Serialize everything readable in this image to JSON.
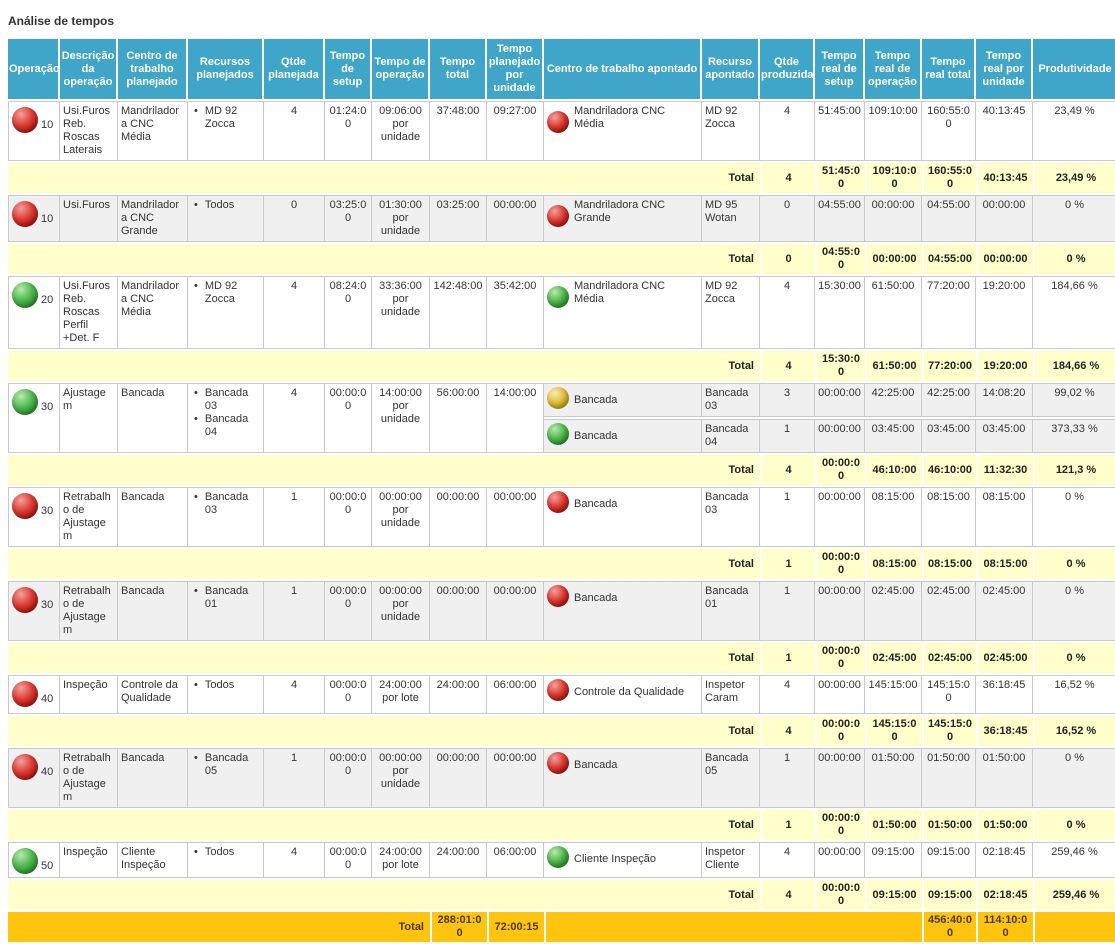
{
  "page_title": "Análise de tempos",
  "colors": {
    "header_bg": "#3FA5C9",
    "total_row_bg": "#FFFFCC",
    "grand_total_bg": "#FFC40D",
    "row_shade_bg": "#F0F0F0",
    "status_red": "#D8352E",
    "status_green": "#3FAE49",
    "status_yellow": "#DDBB33"
  },
  "table": {
    "columns": [
      "Operação",
      "Descrição da operação",
      "Centro de trabalho planejado",
      "Recursos planejados",
      "Qtde planejada",
      "Tempo de setup",
      "Tempo de operação",
      "Tempo total",
      "Tempo planejado por unidade",
      "Centro de trabalho apontado",
      "Recurso apontado",
      "Qtde produzida",
      "Tempo real de setup",
      "Tempo real de operação",
      "Tempo real total",
      "Tempo real por unidade",
      "Produtividade"
    ],
    "total_label": "Total",
    "groups": [
      {
        "op": "10",
        "status": "red",
        "shade": false,
        "descricao": "Usi.Furos Reb. Roscas Laterais",
        "centro_planejado": "Mandriladora CNC Média",
        "recursos": [
          "MD 92 Zocca"
        ],
        "qtde_planejada": "4",
        "tempo_setup": "01:24:00",
        "tempo_operacao": "09:06:00 por unidade",
        "tempo_total": "37:48:00",
        "tempo_planejado_unidade": "09:27:00",
        "apontados": [
          {
            "status": "red",
            "shade": false,
            "centro": "Mandriladora CNC Média",
            "recurso": "MD 92 Zocca",
            "qtde": "4",
            "real_setup": "51:45:00",
            "real_operacao": "109:10:00",
            "real_total": "160:55:00",
            "real_unidade": "40:13:45",
            "produtividade": "23,49 %"
          }
        ],
        "total": {
          "qtde": "4",
          "real_setup": "51:45:00",
          "real_operacao": "109:10:00",
          "real_total": "160:55:00",
          "real_unidade": "40:13:45",
          "produtividade": "23,49 %"
        }
      },
      {
        "op": "10",
        "status": "red",
        "shade": true,
        "descricao": "Usi.Furos",
        "centro_planejado": "Mandriladora CNC Grande",
        "recursos": [
          "Todos"
        ],
        "qtde_planejada": "0",
        "tempo_setup": "03:25:00",
        "tempo_operacao": "01:30:00 por unidade",
        "tempo_total": "03:25:00",
        "tempo_planejado_unidade": "00:00:00",
        "apontados": [
          {
            "status": "red",
            "shade": true,
            "centro": "Mandriladora CNC Grande",
            "recurso": "MD 95 Wotan",
            "qtde": "0",
            "real_setup": "04:55:00",
            "real_operacao": "00:00:00",
            "real_total": "04:55:00",
            "real_unidade": "00:00:00",
            "produtividade": "0 %"
          }
        ],
        "total": {
          "qtde": "0",
          "real_setup": "04:55:00",
          "real_operacao": "00:00:00",
          "real_total": "04:55:00",
          "real_unidade": "00:00:00",
          "produtividade": "0 %"
        }
      },
      {
        "op": "20",
        "status": "green",
        "shade": false,
        "descricao": "Usi.Furos Reb. Roscas Perfil +Det. F",
        "centro_planejado": "Mandriladora CNC Média",
        "recursos": [
          "MD 92 Zocca"
        ],
        "qtde_planejada": "4",
        "tempo_setup": "08:24:00",
        "tempo_operacao": "33:36:00 por unidade",
        "tempo_total": "142:48:00",
        "tempo_planejado_unidade": "35:42:00",
        "apontados": [
          {
            "status": "green",
            "shade": false,
            "centro": "Mandriladora CNC Média",
            "recurso": "MD 92 Zocca",
            "qtde": "4",
            "real_setup": "15:30:00",
            "real_operacao": "61:50:00",
            "real_total": "77:20:00",
            "real_unidade": "19:20:00",
            "produtividade": "184,66 %"
          }
        ],
        "total": {
          "qtde": "4",
          "real_setup": "15:30:00",
          "real_operacao": "61:50:00",
          "real_total": "77:20:00",
          "real_unidade": "19:20:00",
          "produtividade": "184,66 %"
        }
      },
      {
        "op": "30",
        "status": "green",
        "shade": false,
        "descricao": "Ajustagem",
        "centro_planejado": "Bancada",
        "recursos": [
          "Bancada 03",
          "Bancada 04"
        ],
        "qtde_planejada": "4",
        "tempo_setup": "00:00:00",
        "tempo_operacao": "14:00:00 por unidade",
        "tempo_total": "56:00:00",
        "tempo_planejado_unidade": "14:00:00",
        "apontados": [
          {
            "status": "yellow",
            "shade": true,
            "centro": "Bancada",
            "recurso": "Bancada 03",
            "qtde": "3",
            "real_setup": "00:00:00",
            "real_operacao": "42:25:00",
            "real_total": "42:25:00",
            "real_unidade": "14:08:20",
            "produtividade": "99,02 %"
          },
          {
            "status": "green",
            "shade": true,
            "centro": "Bancada",
            "recurso": "Bancada 04",
            "qtde": "1",
            "real_setup": "00:00:00",
            "real_operacao": "03:45:00",
            "real_total": "03:45:00",
            "real_unidade": "03:45:00",
            "produtividade": "373,33 %"
          }
        ],
        "total": {
          "qtde": "4",
          "real_setup": "00:00:00",
          "real_operacao": "46:10:00",
          "real_total": "46:10:00",
          "real_unidade": "11:32:30",
          "produtividade": "121,3 %"
        }
      },
      {
        "op": "30",
        "status": "red",
        "shade": false,
        "descricao": "Retrabalho de Ajustagem",
        "centro_planejado": "Bancada",
        "recursos": [
          "Bancada 03"
        ],
        "qtde_planejada": "1",
        "tempo_setup": "00:00:00",
        "tempo_operacao": "00:00:00 por unidade",
        "tempo_total": "00:00:00",
        "tempo_planejado_unidade": "00:00:00",
        "apontados": [
          {
            "status": "red",
            "shade": false,
            "centro": "Bancada",
            "recurso": "Bancada 03",
            "qtde": "1",
            "real_setup": "00:00:00",
            "real_operacao": "08:15:00",
            "real_total": "08:15:00",
            "real_unidade": "08:15:00",
            "produtividade": "0 %"
          }
        ],
        "total": {
          "qtde": "1",
          "real_setup": "00:00:00",
          "real_operacao": "08:15:00",
          "real_total": "08:15:00",
          "real_unidade": "08:15:00",
          "produtividade": "0 %"
        }
      },
      {
        "op": "30",
        "status": "red",
        "shade": true,
        "descricao": "Retrabalho de Ajustagem",
        "centro_planejado": "Bancada",
        "recursos": [
          "Bancada 01"
        ],
        "qtde_planejada": "1",
        "tempo_setup": "00:00:00",
        "tempo_operacao": "00:00:00 por unidade",
        "tempo_total": "00:00:00",
        "tempo_planejado_unidade": "00:00:00",
        "apontados": [
          {
            "status": "red",
            "shade": true,
            "centro": "Bancada",
            "recurso": "Bancada 01",
            "qtde": "1",
            "real_setup": "00:00:00",
            "real_operacao": "02:45:00",
            "real_total": "02:45:00",
            "real_unidade": "02:45:00",
            "produtividade": "0 %"
          }
        ],
        "total": {
          "qtde": "1",
          "real_setup": "00:00:00",
          "real_operacao": "02:45:00",
          "real_total": "02:45:00",
          "real_unidade": "02:45:00",
          "produtividade": "0 %"
        }
      },
      {
        "op": "40",
        "status": "red",
        "shade": false,
        "descricao": "Inspeção",
        "centro_planejado": "Controle da Qualidade",
        "recursos": [
          "Todos"
        ],
        "qtde_planejada": "4",
        "tempo_setup": "00:00:00",
        "tempo_operacao": "24:00:00 por lote",
        "tempo_total": "24:00:00",
        "tempo_planejado_unidade": "06:00:00",
        "apontados": [
          {
            "status": "red",
            "shade": false,
            "centro": "Controle da Qualidade",
            "recurso": "Inspetor Caram",
            "qtde": "4",
            "real_setup": "00:00:00",
            "real_operacao": "145:15:00",
            "real_total": "145:15:00",
            "real_unidade": "36:18:45",
            "produtividade": "16,52 %"
          }
        ],
        "total": {
          "qtde": "4",
          "real_setup": "00:00:00",
          "real_operacao": "145:15:00",
          "real_total": "145:15:00",
          "real_unidade": "36:18:45",
          "produtividade": "16,52 %"
        }
      },
      {
        "op": "40",
        "status": "red",
        "shade": true,
        "descricao": "Retrabalho de Ajustagem",
        "centro_planejado": "Bancada",
        "recursos": [
          "Bancada 05"
        ],
        "qtde_planejada": "1",
        "tempo_setup": "00:00:00",
        "tempo_operacao": "00:00:00 por unidade",
        "tempo_total": "00:00:00",
        "tempo_planejado_unidade": "00:00:00",
        "apontados": [
          {
            "status": "red",
            "shade": true,
            "centro": "Bancada",
            "recurso": "Bancada 05",
            "qtde": "1",
            "real_setup": "00:00:00",
            "real_operacao": "01:50:00",
            "real_total": "01:50:00",
            "real_unidade": "01:50:00",
            "produtividade": "0 %"
          }
        ],
        "total": {
          "qtde": "1",
          "real_setup": "00:00:00",
          "real_operacao": "01:50:00",
          "real_total": "01:50:00",
          "real_unidade": "01:50:00",
          "produtividade": "0 %"
        }
      },
      {
        "op": "50",
        "status": "green",
        "shade": false,
        "descricao": "Inspeção",
        "centro_planejado": "Cliente Inspeção",
        "recursos": [
          "Todos"
        ],
        "qtde_planejada": "4",
        "tempo_setup": "00:00:00",
        "tempo_operacao": "24:00:00 por lote",
        "tempo_total": "24:00:00",
        "tempo_planejado_unidade": "06:00:00",
        "apontados": [
          {
            "status": "green",
            "shade": false,
            "centro": "Cliente Inspeção",
            "recurso": "Inspetor Cliente",
            "qtde": "4",
            "real_setup": "00:00:00",
            "real_operacao": "09:15:00",
            "real_total": "09:15:00",
            "real_unidade": "02:18:45",
            "produtividade": "259,46 %"
          }
        ],
        "total": {
          "qtde": "4",
          "real_setup": "00:00:00",
          "real_operacao": "09:15:00",
          "real_total": "09:15:00",
          "real_unidade": "02:18:45",
          "produtividade": "259,46 %"
        }
      }
    ],
    "grand_total": {
      "label": "Total",
      "tempo_total": "288:01:00",
      "tempo_planejado_unidade": "72:00:15",
      "real_total": "456:40:00",
      "real_unidade": "114:10:00"
    }
  }
}
